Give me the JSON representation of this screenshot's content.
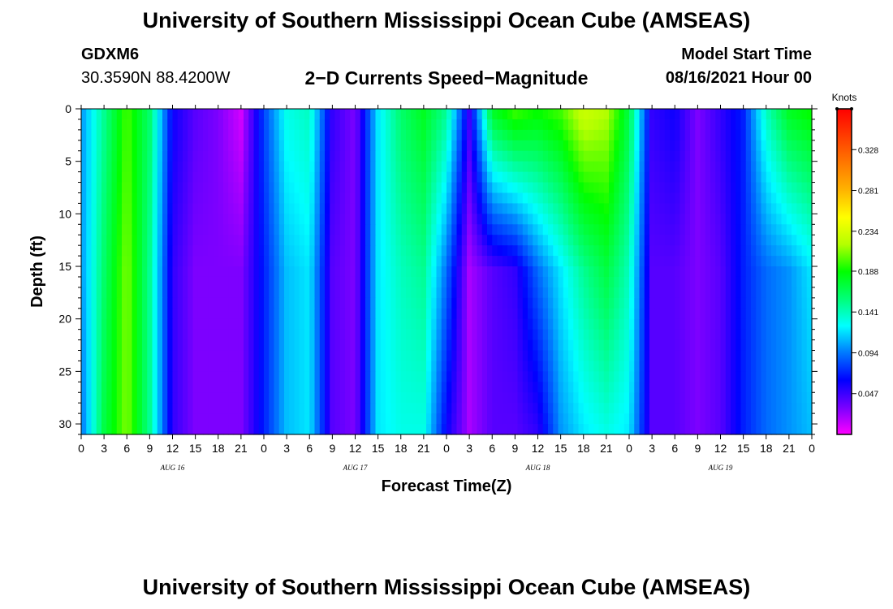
{
  "header": {
    "title": "University of Southern Mississippi Ocean Cube (AMSEAS)",
    "station_id": "GDXM6",
    "coords": "30.3590N  88.4200W",
    "product": "2−D Currents Speed−Magnitude",
    "start_label": "Model Start Time",
    "start_value": "08/16/2021 Hour 00"
  },
  "footer": {
    "title": "University of Southern Mississippi Ocean Cube (AMSEAS)"
  },
  "chart_data": {
    "type": "heatmap",
    "title": "2−D Currents Speed−Magnitude",
    "xlabel": "Forecast Time(Z)",
    "ylabel": "Depth (ft)",
    "x_ticks": [
      "0",
      "3",
      "6",
      "9",
      "12",
      "15",
      "18",
      "21",
      "0",
      "3",
      "6",
      "9",
      "12",
      "15",
      "18",
      "21",
      "0",
      "3",
      "6",
      "9",
      "12",
      "15",
      "18",
      "21",
      "0",
      "3",
      "6",
      "9",
      "12",
      "15",
      "18",
      "21",
      "0"
    ],
    "date_labels": [
      {
        "hour": 12,
        "label": "AUG 16"
      },
      {
        "hour": 36,
        "label": "AUG 17"
      },
      {
        "hour": 60,
        "label": "AUG 18"
      },
      {
        "hour": 84,
        "label": "AUG 19"
      }
    ],
    "x_range_hours": [
      0,
      96
    ],
    "y_ticks": [
      0,
      5,
      10,
      15,
      20,
      25,
      30
    ],
    "ylim": [
      0,
      31
    ],
    "y_inverted": true,
    "colorbar": {
      "unit": "Knots",
      "ticks": [
        "0.047",
        "0.094",
        "0.141",
        "0.188",
        "0.234",
        "0.281",
        "0.328"
      ],
      "range": [
        0.0,
        0.375
      ],
      "colors": [
        "#ff00ff",
        "#7800ff",
        "#0000ff",
        "#0078ff",
        "#00ffff",
        "#00ff78",
        "#00ff00",
        "#b4ff00",
        "#ffff00",
        "#ffb400",
        "#ff7800",
        "#ff3c00",
        "#ff0000"
      ]
    },
    "speed_profile_knots": [
      {
        "hour": 0,
        "surface": 0.1,
        "mid": 0.1,
        "bottom": 0.09
      },
      {
        "hour": 3,
        "surface": 0.15,
        "mid": 0.16,
        "bottom": 0.17
      },
      {
        "hour": 6,
        "surface": 0.2,
        "mid": 0.21,
        "bottom": 0.21
      },
      {
        "hour": 9,
        "surface": 0.16,
        "mid": 0.15,
        "bottom": 0.15
      },
      {
        "hour": 12,
        "surface": 0.06,
        "mid": 0.05,
        "bottom": 0.05
      },
      {
        "hour": 15,
        "surface": 0.04,
        "mid": 0.03,
        "bottom": 0.03
      },
      {
        "hour": 18,
        "surface": 0.03,
        "mid": 0.03,
        "bottom": 0.03
      },
      {
        "hour": 21,
        "surface": 0.01,
        "mid": 0.03,
        "bottom": 0.03
      },
      {
        "hour": 24,
        "surface": 0.08,
        "mid": 0.07,
        "bottom": 0.07
      },
      {
        "hour": 27,
        "surface": 0.13,
        "mid": 0.11,
        "bottom": 0.11
      },
      {
        "hour": 30,
        "surface": 0.14,
        "mid": 0.12,
        "bottom": 0.12
      },
      {
        "hour": 33,
        "surface": 0.05,
        "mid": 0.04,
        "bottom": 0.04
      },
      {
        "hour": 36,
        "surface": 0.03,
        "mid": 0.03,
        "bottom": 0.03
      },
      {
        "hour": 39,
        "surface": 0.12,
        "mid": 0.12,
        "bottom": 0.12
      },
      {
        "hour": 42,
        "surface": 0.16,
        "mid": 0.14,
        "bottom": 0.13
      },
      {
        "hour": 45,
        "surface": 0.18,
        "mid": 0.15,
        "bottom": 0.13
      },
      {
        "hour": 48,
        "surface": 0.15,
        "mid": 0.09,
        "bottom": 0.06
      },
      {
        "hour": 51,
        "surface": 0.05,
        "mid": 0.02,
        "bottom": 0.02
      },
      {
        "hour": 54,
        "surface": 0.18,
        "mid": 0.04,
        "bottom": 0.04
      },
      {
        "hour": 57,
        "surface": 0.2,
        "mid": 0.05,
        "bottom": 0.04
      },
      {
        "hour": 60,
        "surface": 0.19,
        "mid": 0.09,
        "bottom": 0.05
      },
      {
        "hour": 63,
        "surface": 0.2,
        "mid": 0.12,
        "bottom": 0.1
      },
      {
        "hour": 66,
        "surface": 0.23,
        "mid": 0.15,
        "bottom": 0.12
      },
      {
        "hour": 69,
        "surface": 0.22,
        "mid": 0.17,
        "bottom": 0.13
      },
      {
        "hour": 72,
        "surface": 0.17,
        "mid": 0.14,
        "bottom": 0.12
      },
      {
        "hour": 75,
        "surface": 0.05,
        "mid": 0.04,
        "bottom": 0.04
      },
      {
        "hour": 78,
        "surface": 0.06,
        "mid": 0.04,
        "bottom": 0.04
      },
      {
        "hour": 81,
        "surface": 0.03,
        "mid": 0.03,
        "bottom": 0.03
      },
      {
        "hour": 84,
        "surface": 0.05,
        "mid": 0.04,
        "bottom": 0.04
      },
      {
        "hour": 87,
        "surface": 0.07,
        "mid": 0.07,
        "bottom": 0.07
      },
      {
        "hour": 90,
        "surface": 0.14,
        "mid": 0.09,
        "bottom": 0.09
      },
      {
        "hour": 93,
        "surface": 0.18,
        "mid": 0.1,
        "bottom": 0.1
      },
      {
        "hour": 96,
        "surface": 0.19,
        "mid": 0.12,
        "bottom": 0.11
      }
    ]
  }
}
